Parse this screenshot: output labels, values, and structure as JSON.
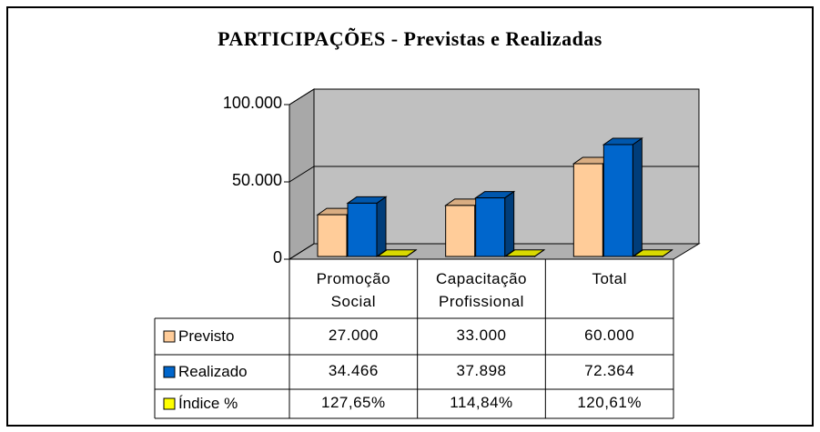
{
  "chart_data": {
    "type": "bar3d",
    "title": "PARTICIPAÇÕES - Previstas e Realizadas",
    "categories": [
      "Promoção Social",
      "Capacitação Profissional",
      "Total"
    ],
    "series": [
      {
        "name": "Previsto",
        "color": "#FFCC99",
        "values": [
          27000,
          33000,
          60000
        ],
        "value_labels": [
          "27.000",
          "33.000",
          "60.000"
        ]
      },
      {
        "name": "Realizado",
        "color": "#0066CC",
        "values": [
          34466,
          37898,
          72364
        ],
        "value_labels": [
          "34.466",
          "37.898",
          "72.364"
        ]
      },
      {
        "name": "Índice %",
        "color": "#FFFF00",
        "values": [
          127.65,
          114.84,
          120.61
        ],
        "value_labels": [
          "127,65%",
          "114,84%",
          "120,61%"
        ]
      }
    ],
    "ylim": [
      0,
      100000
    ],
    "yticks": [
      0,
      {
        "value": 50000,
        "label": "50.000"
      },
      {
        "value": 100000,
        "label": "100.000"
      }
    ],
    "grid": true
  }
}
